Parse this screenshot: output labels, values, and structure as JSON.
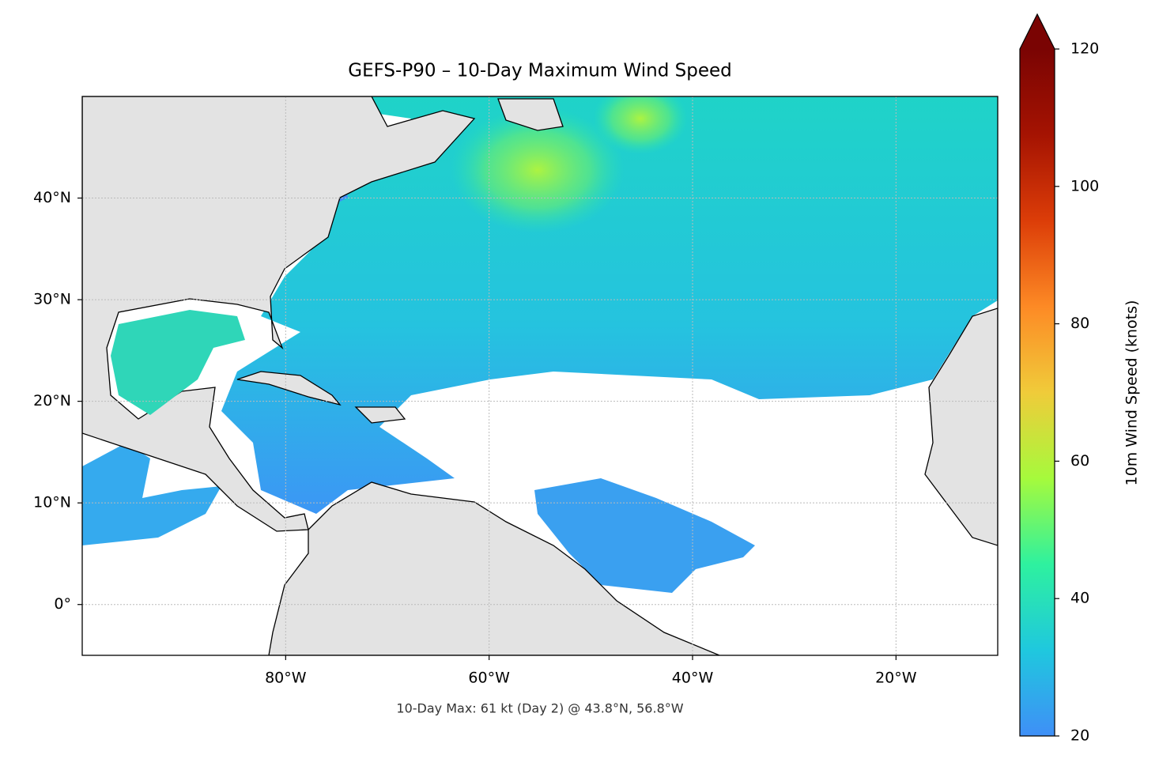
{
  "chart_data": {
    "type": "map",
    "title": "GEFS-P90 – 10-Day Maximum Wind Speed",
    "caption": "10-Day Max: 61 kt (Day 2) @ 43.8°N, 56.8°W",
    "xlim": [
      -100,
      -10
    ],
    "ylim": [
      -5,
      50
    ],
    "xticks": [
      {
        "value": -80,
        "label": "80°W"
      },
      {
        "value": -60,
        "label": "60°W"
      },
      {
        "value": -40,
        "label": "40°W"
      },
      {
        "value": -20,
        "label": "20°W"
      }
    ],
    "yticks": [
      {
        "value": 0,
        "label": "0°"
      },
      {
        "value": 10,
        "label": "10°N"
      },
      {
        "value": 20,
        "label": "20°N"
      },
      {
        "value": 30,
        "label": "30°N"
      },
      {
        "value": 40,
        "label": "40°N"
      }
    ],
    "grid": true,
    "colorbar": {
      "label": "10m Wind Speed (knots)",
      "lim": [
        20,
        120
      ],
      "ticks": [
        20,
        40,
        60,
        80,
        100,
        120
      ],
      "extend": "max",
      "colors": [
        "#3f8ff7",
        "#1fc8de",
        "#2ef19f",
        "#a6fa3c",
        "#f0cb3a",
        "#fd8a25",
        "#dc3d08",
        "#a51302",
        "#7a0403"
      ]
    }
  }
}
